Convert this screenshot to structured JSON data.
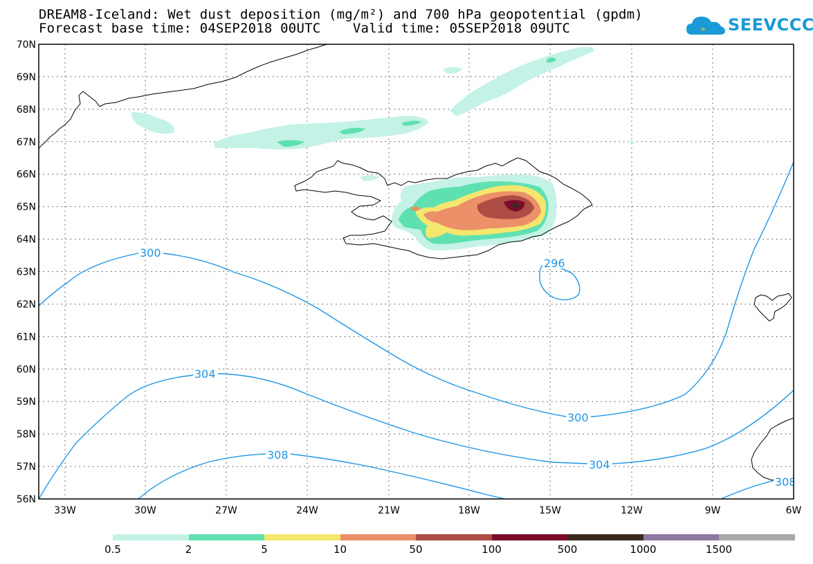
{
  "title_line1": "DREAM8-Iceland: Wet dust deposition (mg/m²) and 700 hPa geopotential (gpdm)",
  "title_line2": "Forecast base time: 04SEP2018 00UTC    Valid time: 05SEP2018 09UTC",
  "logo_text": "SEEVCCC",
  "lat_labels": [
    "70N",
    "69N",
    "68N",
    "67N",
    "66N",
    "65N",
    "64N",
    "63N",
    "62N",
    "61N",
    "60N",
    "59N",
    "58N",
    "57N",
    "56N"
  ],
  "lon_labels": [
    "33W",
    "30W",
    "27W",
    "24W",
    "21W",
    "18W",
    "15W",
    "12W",
    "9W",
    "6W"
  ],
  "contour_labels": [
    "300",
    "296",
    "304",
    "300",
    "308",
    "304",
    "308"
  ],
  "colorbar": {
    "colors": [
      "#c4f2e6",
      "#5fe0b0",
      "#f5e66e",
      "#eb9068",
      "#ae4d43",
      "#7a0c2c",
      "#3a2a1e",
      "#8c78a2",
      "#a8a8a8"
    ],
    "labels": [
      "0.5",
      "2",
      "5",
      "10",
      "50",
      "100",
      "500",
      "1000",
      "1500"
    ]
  },
  "colors": {
    "contour": "#1e96e6",
    "accent": "#1a9ad6"
  }
}
